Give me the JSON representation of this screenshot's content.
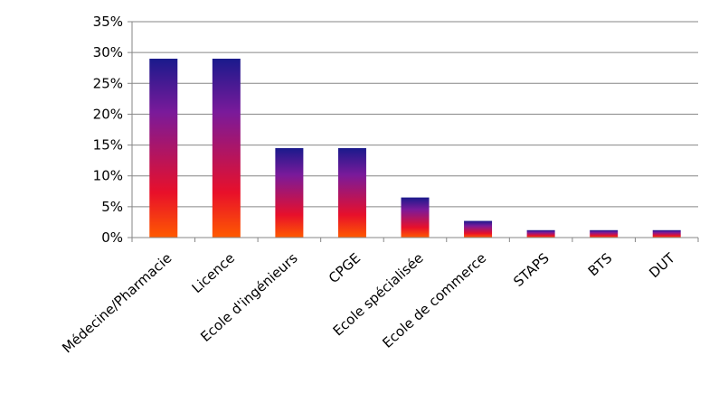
{
  "chart_data": {
    "type": "bar",
    "categories": [
      "Médecine/Pharmacie",
      "Licence",
      "Ecole d'ingénieurs",
      "CPGE",
      "Ecole spécialisée",
      "Ecole de commerce",
      "STAPS",
      "BTS",
      "DUT"
    ],
    "values": [
      0.29,
      0.29,
      0.145,
      0.145,
      0.065,
      0.027,
      0.012,
      0.012,
      0.012
    ],
    "y_ticks": [
      "0%",
      "5%",
      "10%",
      "15%",
      "20%",
      "25%",
      "30%",
      "35%"
    ],
    "ylim": [
      0,
      0.35
    ],
    "grid": true,
    "legend": "none",
    "bar_gradient": [
      "#1a1a8c",
      "#7a1a9a",
      "#e8102a",
      "#ff5a00"
    ]
  }
}
